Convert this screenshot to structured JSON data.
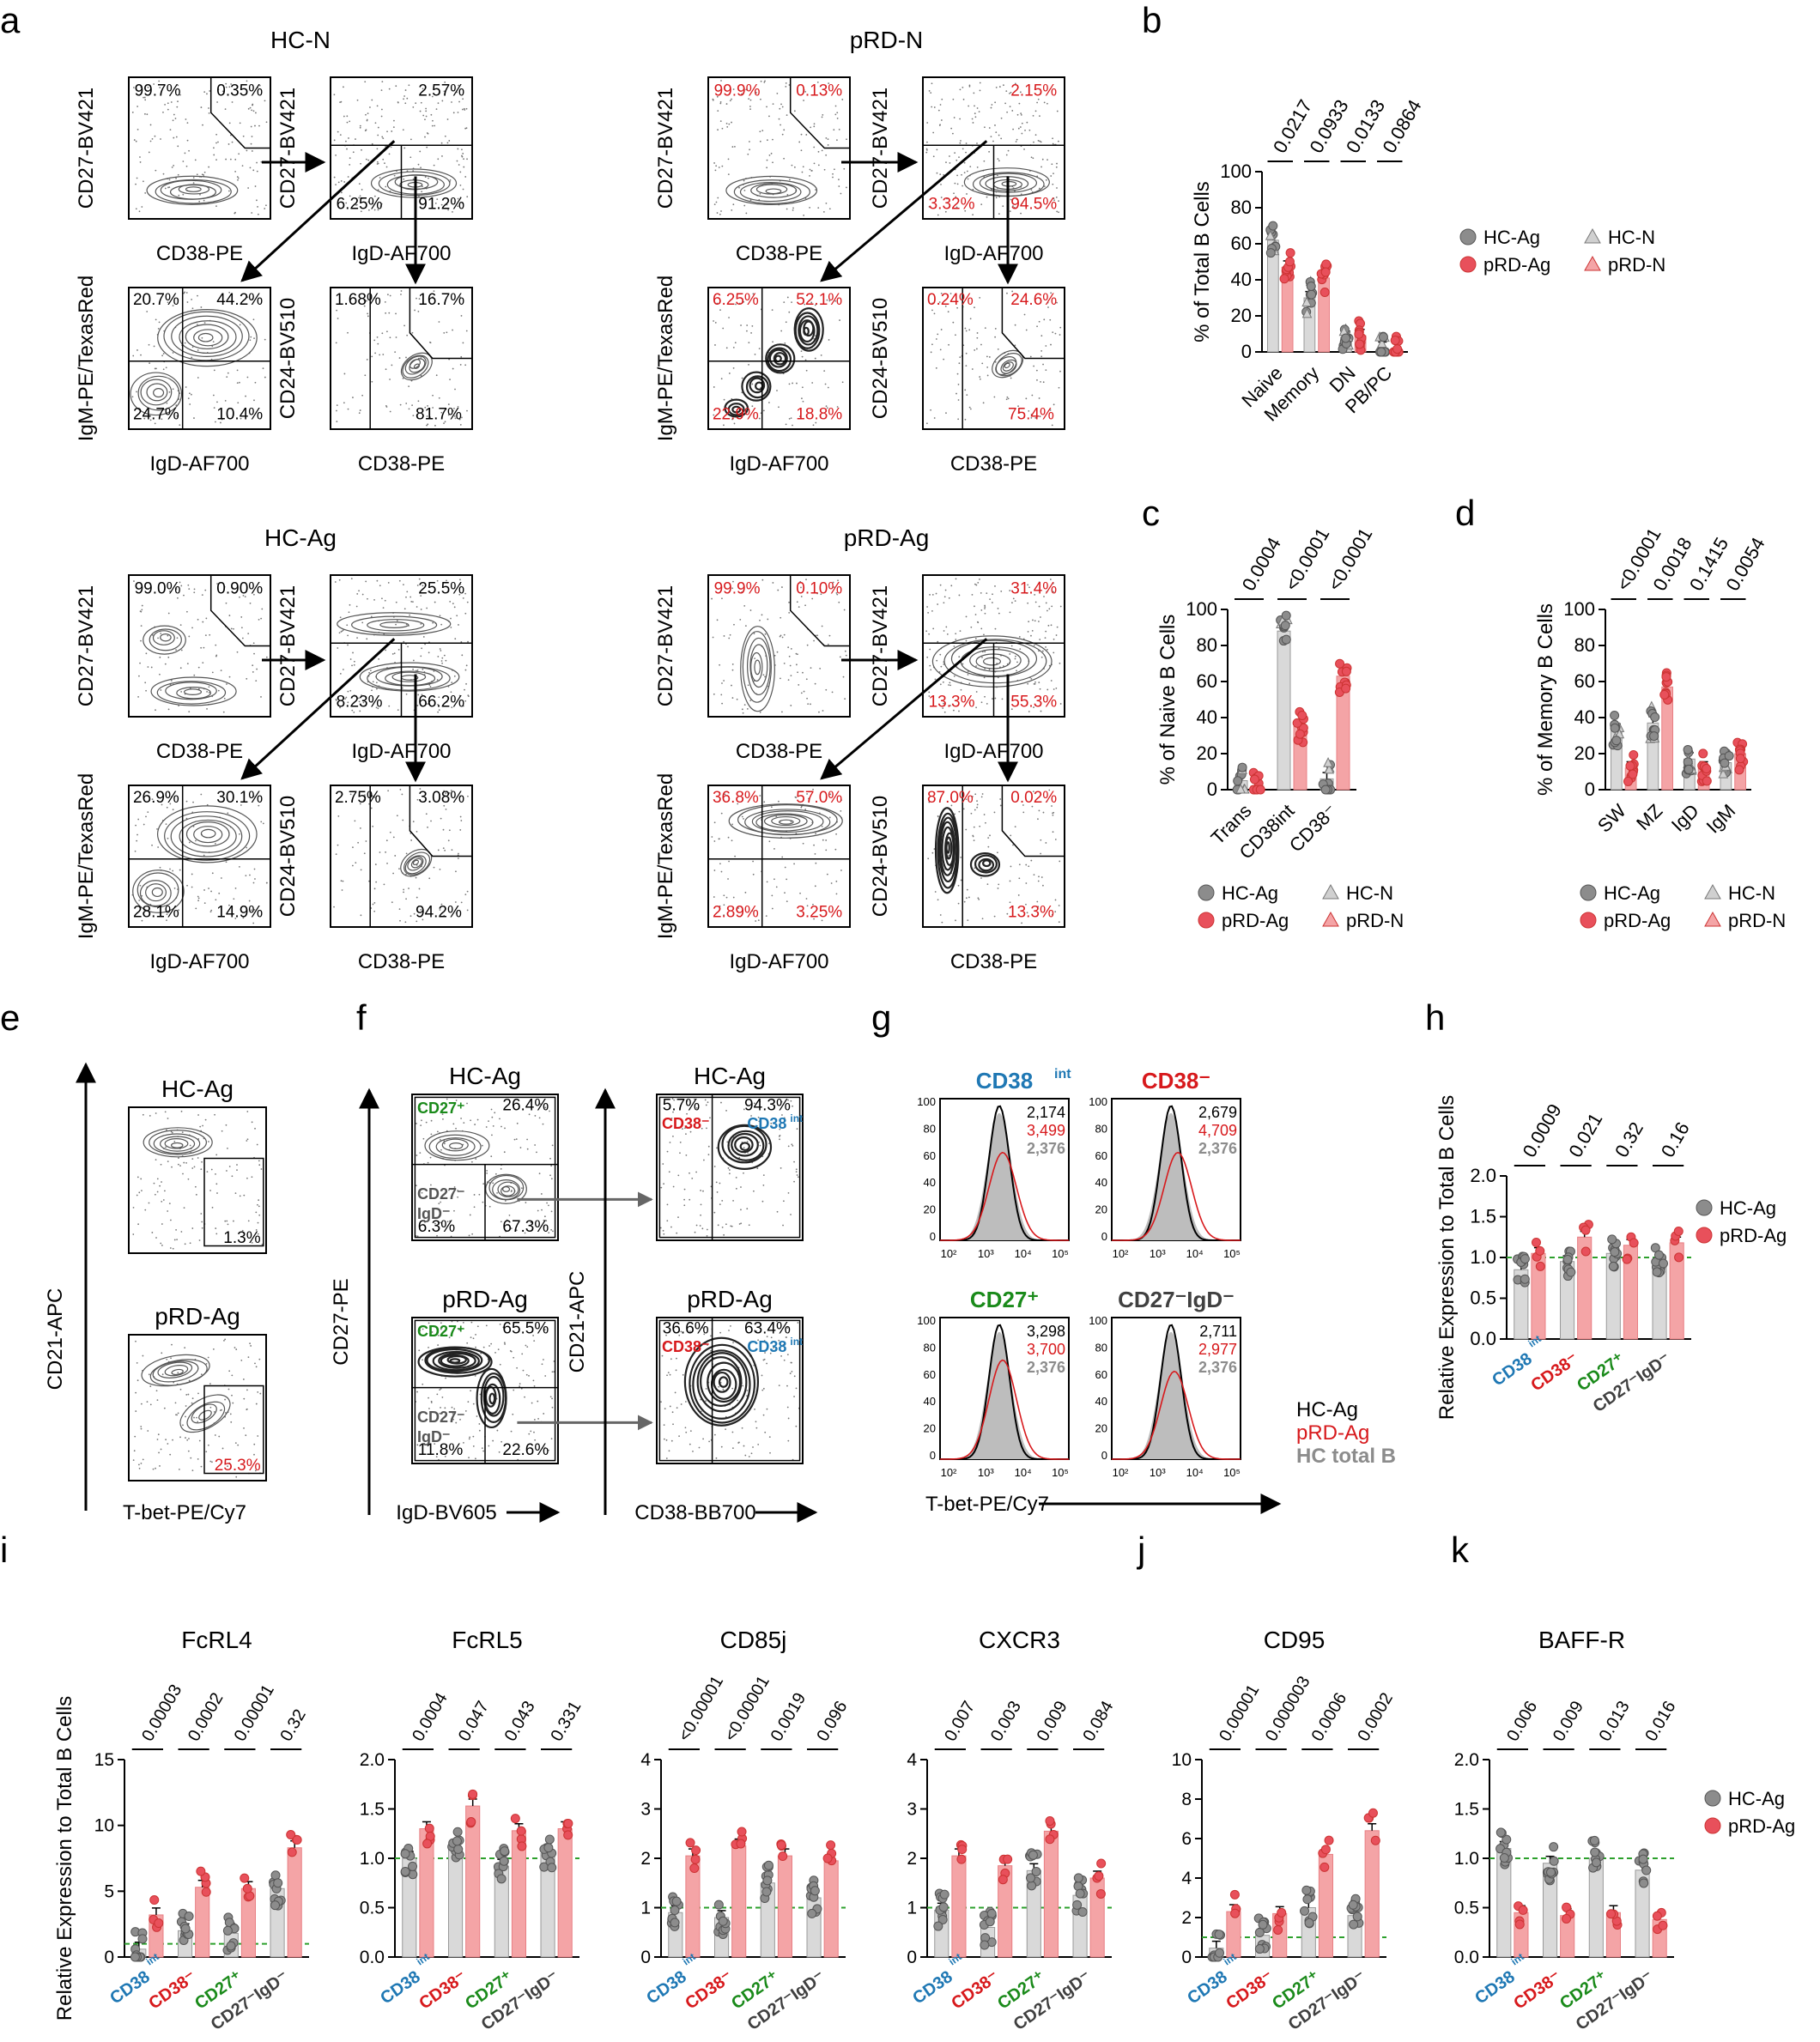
{
  "panel_letters": [
    "a",
    "b",
    "c",
    "d",
    "e",
    "f",
    "g",
    "h",
    "i",
    "j",
    "k"
  ],
  "colors": {
    "hc": "#8c8c8c",
    "hc_fill": "#d9d9d9",
    "prd": "#e8505b",
    "prd_fill": "#f4a4a6",
    "red_text": "#d7191c",
    "blue_text": "#1f78b4",
    "green_text": "#1a8a1a",
    "dark_text": "#404040",
    "gray_text": "#8c8c8c",
    "guide": "#2ca02c"
  },
  "legend_labels": {
    "hc_ag": "HC-Ag",
    "prd_ag": "pRD-Ag",
    "hc_n": "HC-N",
    "prd_n": "pRD-N"
  },
  "flow_a": {
    "groups": [
      {
        "title": "HC-N",
        "red": false,
        "p1": [
          "99.7%",
          "0.35%"
        ],
        "p2": [
          "2.57%",
          "6.25%",
          "91.2%"
        ],
        "p3": [
          "20.7%",
          "44.2%",
          "24.7%",
          "10.4%"
        ],
        "p4": [
          "1.68%",
          "16.7%",
          "81.7%"
        ]
      },
      {
        "title": "pRD-N",
        "red": true,
        "p1": [
          "99.9%",
          "0.13%"
        ],
        "p2": [
          "2.15%",
          "3.32%",
          "94.5%"
        ],
        "p3": [
          "6.25%",
          "52.1%",
          "22.9%",
          "18.8%"
        ],
        "p4": [
          "0.24%",
          "24.6%",
          "75.4%"
        ]
      },
      {
        "title": "HC-Ag",
        "red": false,
        "p1": [
          "99.0%",
          "0.90%"
        ],
        "p2": [
          "25.5%",
          "8.23%",
          "66.2%"
        ],
        "p3": [
          "26.9%",
          "30.1%",
          "28.1%",
          "14.9%"
        ],
        "p4": [
          "2.75%",
          "3.08%",
          "94.2%"
        ]
      },
      {
        "title": "pRD-Ag",
        "red": true,
        "p1": [
          "99.9%",
          "0.10%"
        ],
        "p2": [
          "31.4%",
          "13.3%",
          "55.3%"
        ],
        "p3": [
          "36.8%",
          "57.0%",
          "2.89%",
          "3.25%"
        ],
        "p4": [
          "87.0%",
          "0.02%",
          "13.3%"
        ]
      }
    ],
    "axis": {
      "p1": [
        "CD27-BV421",
        "CD38-PE"
      ],
      "p2": [
        "CD27-BV421",
        "IgD-AF700"
      ],
      "p3": [
        "IgM-PE/TexasRed",
        "IgD-AF700"
      ],
      "p4": [
        "CD24-BV510",
        "CD38-PE"
      ]
    },
    "ticks": {
      "y1": [
        "10⁵",
        "10⁴",
        "10³",
        "0"
      ],
      "x1": [
        "0",
        "10⁴",
        "10⁵"
      ],
      "y2": [
        "10⁵",
        "10⁴",
        "10³",
        "0",
        "-10³"
      ],
      "x2": [
        "-10³",
        "0",
        "10³",
        "10⁴"
      ],
      "x3": [
        "-10³",
        "0",
        "10³",
        "10⁴"
      ],
      "x4": [
        "0",
        "10⁴",
        "10⁵"
      ]
    }
  },
  "panel_e": {
    "titles": [
      "HC-Ag",
      "pRD-Ag"
    ],
    "pcts": [
      "1.3%",
      "25.3%"
    ],
    "ylabel": "CD21-APC",
    "xlabel": "T-bet-PE/Cy7",
    "yticks": [
      "10⁴",
      "10³",
      "0",
      "-10³"
    ],
    "xticks": [
      "10³",
      "10⁴"
    ]
  },
  "panel_f": {
    "titles": [
      "HC-Ag",
      "pRD-Ag"
    ],
    "left_pcts": [
      [
        "26.4%",
        "6.3%",
        "67.3%"
      ],
      [
        "65.5%",
        "11.8%",
        "22.6%"
      ]
    ],
    "cd27pos": "CD27⁺",
    "cd27neg": "CD27⁻",
    "igdneg": "IgD⁻",
    "right_pcts": [
      [
        "5.7%",
        "94.3%"
      ],
      [
        "36.6%",
        "63.4%"
      ]
    ],
    "cd38neg": "CD38⁻",
    "cd38int": "CD38",
    "int_sup": "int",
    "ylabel1": "CD27-PE",
    "xlabel1": "IgD-BV605",
    "ylabel2": "CD21-APC",
    "xlabel2": "CD38-BB700",
    "yticks": [
      "10⁴",
      "10³",
      "0",
      "-10³"
    ],
    "xticks": [
      "-10³",
      "0",
      "10³",
      "10⁴",
      "10⁵"
    ]
  },
  "panel_g": {
    "titles": [
      "CD38",
      "CD38⁻",
      "CD27⁺",
      "CD27⁻IgD⁻"
    ],
    "title0_sup": "int",
    "values": [
      [
        "2,174",
        "3,499",
        "2,376"
      ],
      [
        "2,679",
        "4,709",
        "2,376"
      ],
      [
        "3,298",
        "3,700",
        "2,376"
      ],
      [
        "2,711",
        "2,977",
        "2,376"
      ]
    ],
    "legend": [
      "HC-Ag",
      "pRD-Ag",
      "HC total B"
    ],
    "xlabel": "T-bet-PE/Cy7",
    "yticks": [
      "100",
      "80",
      "60",
      "40",
      "20",
      "0"
    ],
    "xticks": [
      "10²",
      "10³",
      "10⁴",
      "10⁵"
    ]
  },
  "chart_data": [
    {
      "id": "b",
      "type": "bar",
      "ylabel": "% of Total B Cells",
      "ylim": [
        0,
        100
      ],
      "yticks": [
        0,
        20,
        40,
        60,
        80,
        100
      ],
      "categories": [
        "Naive",
        "Memory",
        "DN",
        "PB/PC"
      ],
      "pvalues": [
        "0.0217",
        "0.0933",
        "0.0133",
        "0.0864"
      ],
      "series": [
        {
          "name": "HC-Ag",
          "values": [
            62,
            30,
            8,
            2
          ]
        },
        {
          "name": "pRD-Ag",
          "values": [
            47,
            41,
            9,
            1.5
          ]
        }
      ]
    },
    {
      "id": "c",
      "type": "bar",
      "ylabel": "% of Naive B Cells",
      "ylim": [
        0,
        100
      ],
      "yticks": [
        0,
        20,
        40,
        60,
        80,
        100
      ],
      "categories": [
        "Trans",
        "CD38int",
        "CD38⁻"
      ],
      "pvalues": [
        "0.0004",
        "<0.0001",
        "<0.0001"
      ],
      "series": [
        {
          "name": "HC-Ag",
          "values": [
            5,
            88,
            6
          ]
        },
        {
          "name": "pRD-Ag",
          "values": [
            2,
            35,
            63
          ]
        }
      ]
    },
    {
      "id": "d",
      "type": "bar",
      "ylabel": "% of Memory B Cells",
      "ylim": [
        0,
        100
      ],
      "yticks": [
        0,
        20,
        40,
        60,
        80,
        100
      ],
      "categories": [
        "SW",
        "MZ",
        "IgD",
        "IgM"
      ],
      "pvalues": [
        "<0.0001",
        "0.0018",
        "0.1415",
        "0.0054"
      ],
      "series": [
        {
          "name": "HC-Ag",
          "values": [
            33,
            37,
            17,
            15
          ]
        },
        {
          "name": "pRD-Ag",
          "values": [
            12,
            57,
            12,
            20
          ]
        }
      ]
    },
    {
      "id": "h",
      "type": "bar",
      "ylabel": "Relative Expression to Total B Cells",
      "ylim": [
        0,
        2
      ],
      "yticks": [
        "0.0",
        "0.5",
        "1.0",
        "1.5",
        "2.0"
      ],
      "categories": [
        "CD38int",
        "CD38⁻",
        "CD27⁺",
        "CD27⁻IgD⁻"
      ],
      "pvalues": [
        "0.0009",
        "0.021",
        "0.32",
        "0.16"
      ],
      "series": [
        {
          "name": "HC-Ag",
          "values": [
            0.85,
            0.95,
            1.05,
            0.95
          ]
        },
        {
          "name": "pRD-Ag",
          "values": [
            1.05,
            1.25,
            1.15,
            1.18
          ]
        }
      ]
    },
    {
      "id": "i1",
      "type": "bar",
      "title": "FcRL4",
      "ylabel": "Relative Expression to Total B Cells",
      "ylim": [
        0,
        15
      ],
      "yticks": [
        "0",
        "5",
        "10",
        "15"
      ],
      "categories": [
        "CD38int",
        "CD38⁻",
        "CD27⁺",
        "CD27⁻IgD⁻"
      ],
      "pvalues": [
        "0.00003",
        "0.0002",
        "0.00001",
        "0.32"
      ],
      "series": [
        {
          "name": "HC-Ag",
          "values": [
            0.6,
            2.0,
            1.8,
            5.2
          ]
        },
        {
          "name": "pRD-Ag",
          "values": [
            3.2,
            5.3,
            5.2,
            8.3
          ]
        }
      ]
    },
    {
      "id": "i2",
      "type": "bar",
      "title": "FcRL5",
      "ylim": [
        0,
        2
      ],
      "yticks": [
        "0.0",
        "0.5",
        "1.0",
        "1.5",
        "2.0"
      ],
      "categories": [
        "CD38int",
        "CD38⁻",
        "CD27⁺",
        "CD27⁻IgD⁻"
      ],
      "pvalues": [
        "0.0004",
        "0.047",
        "0.043",
        "0.331"
      ],
      "series": [
        {
          "name": "HC-Ag",
          "values": [
            1.0,
            1.1,
            0.92,
            1.05
          ]
        },
        {
          "name": "pRD-Ag",
          "values": [
            1.3,
            1.53,
            1.28,
            1.3
          ]
        }
      ]
    },
    {
      "id": "i3",
      "type": "bar",
      "title": "CD85j",
      "ylim": [
        0,
        4
      ],
      "yticks": [
        "0",
        "1",
        "2",
        "3",
        "4"
      ],
      "categories": [
        "CD38int",
        "CD38⁻",
        "CD27⁺",
        "CD27⁻IgD⁻"
      ],
      "pvalues": [
        "<0.00001",
        "<0.00001",
        "0.0019",
        "0.096"
      ],
      "series": [
        {
          "name": "HC-Ag",
          "values": [
            0.9,
            0.8,
            1.5,
            1.2
          ]
        },
        {
          "name": "pRD-Ag",
          "values": [
            2.05,
            2.25,
            2.05,
            1.95
          ]
        }
      ]
    },
    {
      "id": "i4",
      "type": "bar",
      "title": "CXCR3",
      "ylim": [
        0,
        4
      ],
      "yticks": [
        "0",
        "1",
        "2",
        "3",
        "4"
      ],
      "categories": [
        "CD38int",
        "CD38⁻",
        "CD27⁺",
        "CD27⁻IgD⁻"
      ],
      "pvalues": [
        "0.007",
        "0.003",
        "0.009",
        "0.084"
      ],
      "series": [
        {
          "name": "HC-Ag",
          "values": [
            0.95,
            0.6,
            1.75,
            1.25
          ]
        },
        {
          "name": "pRD-Ag",
          "values": [
            2.05,
            1.85,
            2.55,
            1.6
          ]
        }
      ]
    },
    {
      "id": "j",
      "type": "bar",
      "title": "CD95",
      "ylim": [
        0,
        10
      ],
      "yticks": [
        "0",
        "2",
        "4",
        "6",
        "8",
        "10"
      ],
      "categories": [
        "CD38int",
        "CD38⁻",
        "CD27⁺",
        "CD27⁻IgD⁻"
      ],
      "pvalues": [
        "0.00001",
        "0.000003",
        "0.0006",
        "0.0002"
      ],
      "series": [
        {
          "name": "HC-Ag",
          "values": [
            0.45,
            1.1,
            2.5,
            2.1
          ]
        },
        {
          "name": "pRD-Ag",
          "values": [
            2.3,
            2.2,
            5.2,
            6.4
          ]
        }
      ]
    },
    {
      "id": "k",
      "type": "bar",
      "title": "BAFF-R",
      "ylim": [
        0,
        2
      ],
      "yticks": [
        "0.0",
        "0.5",
        "1.0",
        "1.5",
        "2.0"
      ],
      "categories": [
        "CD38int",
        "CD38⁻",
        "CD27⁺",
        "CD27⁻IgD⁻"
      ],
      "pvalues": [
        "0.006",
        "0.009",
        "0.013",
        "0.016"
      ],
      "series": [
        {
          "name": "HC-Ag",
          "values": [
            1.1,
            0.95,
            1.0,
            0.88
          ]
        },
        {
          "name": "pRD-Ag",
          "values": [
            0.45,
            0.42,
            0.45,
            0.38
          ]
        }
      ]
    }
  ],
  "bar_label_text": {
    "int_sup": "int",
    "cd38": "CD38",
    "cd38neg": "CD38⁻",
    "cd27pos": "CD27⁺",
    "dn": "CD27⁻IgD⁻"
  }
}
